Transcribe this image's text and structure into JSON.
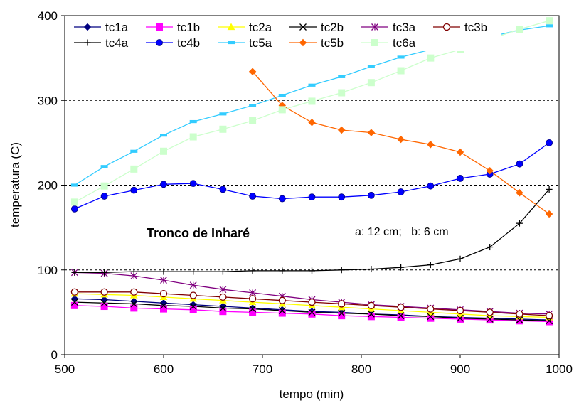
{
  "chart_data": {
    "type": "line",
    "xlabel": "tempo (min)",
    "ylabel": "temperatura (C)",
    "xlim": [
      500,
      1000
    ],
    "ylim": [
      0,
      400
    ],
    "xticks": [
      500,
      600,
      700,
      800,
      900,
      1000
    ],
    "yticks": [
      0,
      100,
      200,
      300,
      400
    ],
    "grid": "horizontal dashed at 100, 200, 300",
    "legend_position": "top-left",
    "annotations": [
      "Tronco de Inharé",
      "a: 12 cm;   b: 6 cm"
    ],
    "x": [
      510,
      540,
      570,
      600,
      630,
      660,
      690,
      720,
      750,
      780,
      810,
      840,
      870,
      900,
      930,
      960,
      990
    ],
    "series": [
      {
        "name": "tc1a",
        "color": "#000080",
        "marker": "diamond",
        "values": [
          66,
          65,
          63,
          61,
          59,
          57,
          55,
          53,
          51,
          50,
          48,
          47,
          45,
          44,
          43,
          42,
          41
        ]
      },
      {
        "name": "tc1b",
        "color": "#ff00ff",
        "marker": "square",
        "values": [
          58,
          57,
          55,
          54,
          53,
          51,
          50,
          49,
          48,
          46,
          45,
          44,
          43,
          42,
          41,
          40,
          39
        ]
      },
      {
        "name": "tc2a",
        "color": "#ffff00",
        "marker": "triangle",
        "values": [
          72,
          71,
          70,
          68,
          66,
          64,
          62,
          60,
          58,
          56,
          54,
          52,
          50,
          48,
          46,
          45,
          44
        ]
      },
      {
        "name": "tc2b",
        "color": "#000000",
        "marker": "x",
        "values": [
          62,
          61,
          60,
          58,
          57,
          55,
          54,
          52,
          50,
          49,
          48,
          46,
          45,
          43,
          42,
          41,
          40
        ]
      },
      {
        "name": "tc3a",
        "color": "#800080",
        "marker": "star",
        "values": [
          97,
          96,
          93,
          88,
          82,
          77,
          73,
          69,
          65,
          62,
          59,
          57,
          55,
          53,
          51,
          49,
          48
        ]
      },
      {
        "name": "tc3b",
        "color": "#800000",
        "marker": "circle-open",
        "values": [
          74,
          74,
          74,
          72,
          70,
          68,
          66,
          64,
          62,
          60,
          58,
          56,
          54,
          52,
          50,
          48,
          46
        ]
      },
      {
        "name": "tc4a",
        "color": "#000000",
        "marker": "plus",
        "values": [
          97,
          97,
          98,
          98,
          98,
          98,
          99,
          99,
          99,
          100,
          101,
          103,
          106,
          113,
          127,
          155,
          195
        ]
      },
      {
        "name": "tc4b",
        "color": "#0000ff",
        "marker": "circle",
        "values": [
          172,
          187,
          194,
          201,
          202,
          195,
          187,
          184,
          186,
          186,
          188,
          192,
          199,
          208,
          213,
          225,
          250
        ]
      },
      {
        "name": "tc5a",
        "color": "#33ccff",
        "marker": "dash",
        "values": [
          200,
          222,
          240,
          259,
          275,
          284,
          294,
          306,
          318,
          328,
          340,
          351,
          360,
          368,
          375,
          383,
          388
        ]
      },
      {
        "name": "tc5b",
        "color": "#ff6600",
        "marker": "diamond",
        "values": [
          null,
          null,
          null,
          null,
          null,
          null,
          334,
          294,
          274,
          265,
          262,
          254,
          248,
          239,
          217,
          191,
          166
        ]
      },
      {
        "name": "tc6a",
        "color": "#ccffcc",
        "marker": "square",
        "values": [
          180,
          199,
          219,
          240,
          257,
          266,
          276,
          289,
          299,
          309,
          321,
          335,
          350,
          360,
          372,
          384,
          394
        ]
      }
    ]
  }
}
